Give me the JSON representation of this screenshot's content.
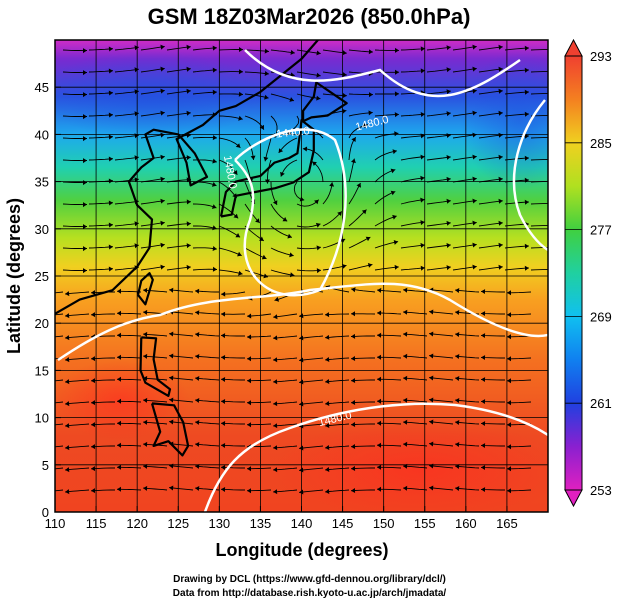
{
  "chart_data": {
    "type": "heatmap",
    "title": "GSM 18Z03Mar2026 (850.0hPa)",
    "xlabel": "Longitude (degrees)",
    "ylabel": "Latitude  (degrees)",
    "xlim": [
      110,
      170
    ],
    "ylim": [
      0,
      50
    ],
    "x_ticks": [
      "110",
      "115",
      "120",
      "125",
      "130",
      "135",
      "140",
      "145",
      "150",
      "155",
      "160",
      "165"
    ],
    "y_ticks": [
      "0",
      "5",
      "10",
      "15",
      "20",
      "25",
      "30",
      "35",
      "40",
      "45"
    ],
    "grid": true,
    "colorbar": {
      "min": 253,
      "max": 293,
      "ticks": [
        "253",
        "261",
        "269",
        "277",
        "285",
        "293"
      ],
      "placement": "right"
    },
    "field": "temperature (K) with streamlines and geopotential height contours",
    "contours": [
      {
        "label": "1480.0"
      },
      {
        "label": "1440.0"
      },
      {
        "label": "1480.0"
      },
      {
        "label": "1480.0"
      }
    ]
  },
  "credits": {
    "line1": "Drawing by DCL (https://www.gfd-dennou.org/library/dcl/)",
    "line2": "Data from http://database.rish.kyoto-u.ac.jp/arch/jmadata/"
  }
}
